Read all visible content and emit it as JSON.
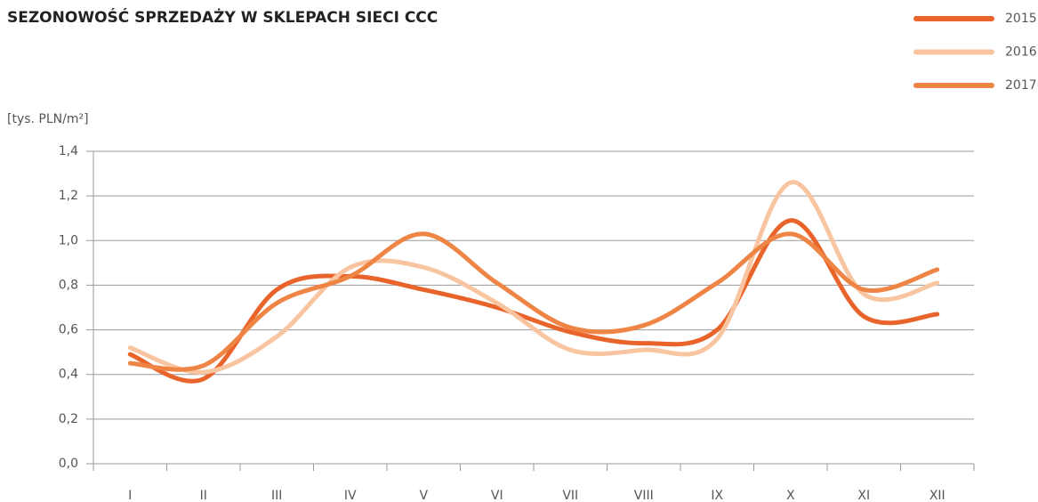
{
  "chart_data": {
    "type": "line",
    "title": "SEZONOWOŚĆ SPRZEDAŻY W SKLEPACH SIECI CCC",
    "y_label": "[tys. PLN/m²]",
    "categories": [
      "I",
      "II",
      "III",
      "IV",
      "V",
      "VI",
      "VII",
      "VIII",
      "IX",
      "X",
      "XI",
      "XII"
    ],
    "series": [
      {
        "name": "2015",
        "color": "#e8642a",
        "values": [
          0.49,
          0.38,
          0.78,
          0.84,
          0.78,
          0.7,
          0.59,
          0.54,
          0.6,
          1.09,
          0.66,
          0.67
        ]
      },
      {
        "name": "2016",
        "color": "#f9c5a0",
        "values": [
          0.52,
          0.41,
          0.57,
          0.88,
          0.88,
          0.72,
          0.51,
          0.51,
          0.56,
          1.26,
          0.76,
          0.81
        ]
      },
      {
        "name": "2017",
        "color": "#ee8545",
        "values": [
          0.45,
          0.44,
          0.72,
          0.84,
          1.03,
          0.81,
          0.61,
          0.62,
          0.81,
          1.03,
          0.78,
          0.87
        ]
      }
    ],
    "ylim": [
      0,
      1.4
    ],
    "yticks": [
      {
        "value": 0,
        "label": "0,0"
      },
      {
        "value": 0.2,
        "label": "0,2"
      },
      {
        "value": 0.4,
        "label": "0,4"
      },
      {
        "value": 0.6,
        "label": "0,6"
      },
      {
        "value": 0.8,
        "label": "0,8"
      },
      {
        "value": 1.0,
        "label": "1,0"
      },
      {
        "value": 1.2,
        "label": "1,2"
      },
      {
        "value": 1.4,
        "label": "1,4"
      }
    ],
    "grid": true,
    "legend": "top-right"
  }
}
